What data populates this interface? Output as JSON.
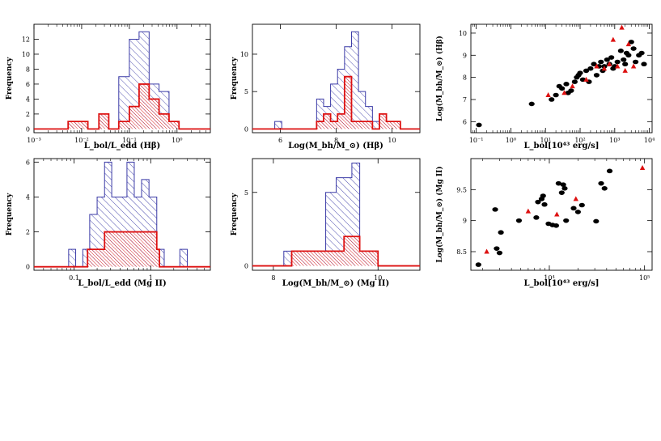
{
  "chart_data": [
    {
      "type": "histogram",
      "id": "hist-lbol-ledd-hb",
      "title": "",
      "xlabel": "L_bol/L_edd (Hβ)",
      "ylabel": "Frequency",
      "x_scale": "log",
      "xlim": [
        0.001,
        5
      ],
      "ylim": [
        -0.5,
        14
      ],
      "x_ticks": [
        {
          "value": 0.001,
          "label": "10⁻³"
        },
        {
          "value": 0.01,
          "label": "10⁻²"
        },
        {
          "value": 0.1,
          "label": "10⁻¹"
        },
        {
          "value": 1,
          "label": "10⁰"
        }
      ],
      "y_ticks": [
        0,
        2,
        4,
        6,
        8,
        10,
        12
      ],
      "series": [
        {
          "color": "#3a3aa6",
          "fill": "hatch-blue",
          "bin_edges": [
            0.0052,
            0.0085,
            0.0135,
            0.023,
            0.037,
            0.06,
            0.1,
            0.16,
            0.26,
            0.42,
            0.68,
            1.1
          ],
          "counts": [
            1,
            1,
            0,
            2,
            0,
            7,
            12,
            13,
            6,
            5,
            1
          ]
        },
        {
          "color": "#dd1111",
          "fill": "hatch-red",
          "bin_edges": [
            0.0052,
            0.0085,
            0.0135,
            0.023,
            0.037,
            0.06,
            0.1,
            0.16,
            0.26,
            0.42,
            0.68,
            1.1
          ],
          "counts": [
            1,
            1,
            0,
            2,
            0,
            1,
            3,
            6,
            4,
            2,
            1
          ]
        }
      ]
    },
    {
      "type": "histogram",
      "id": "hist-mbh-hb",
      "title": "",
      "xlabel": "Log(M_bh/M_⊙) (Hβ)",
      "ylabel": "Frequency",
      "x_scale": "linear",
      "xlim": [
        5,
        11
      ],
      "ylim": [
        -0.5,
        14
      ],
      "x_ticks": [
        {
          "value": 6,
          "label": "6"
        },
        {
          "value": 8,
          "label": "8"
        },
        {
          "value": 10,
          "label": "10"
        }
      ],
      "y_ticks": [
        0,
        5,
        10
      ],
      "series": [
        {
          "color": "#3a3aa6",
          "fill": "hatch-blue",
          "bin_edges": [
            5.8,
            6.05,
            6.3,
            6.55,
            6.8,
            7.05,
            7.3,
            7.55,
            7.8,
            8.05,
            8.3,
            8.55,
            8.8,
            9.05,
            9.3,
            9.55,
            9.8,
            10.05,
            10.3
          ],
          "counts": [
            1,
            0,
            0,
            0,
            0,
            0,
            4,
            3,
            6,
            8,
            11,
            13,
            5,
            3,
            1,
            2,
            1,
            1
          ]
        },
        {
          "color": "#dd1111",
          "fill": "hatch-red",
          "bin_edges": [
            6.8,
            7.05,
            7.3,
            7.55,
            7.8,
            8.05,
            8.3,
            8.55,
            8.8,
            9.05,
            9.3,
            9.55,
            9.8,
            10.05,
            10.3
          ],
          "counts": [
            0,
            0,
            1,
            2,
            1,
            2,
            7,
            1,
            1,
            1,
            0,
            2,
            1,
            1
          ]
        }
      ]
    },
    {
      "type": "scatter",
      "id": "scatter-hb",
      "title": "",
      "xlabel": "L_bol[10⁴³ erg/s]",
      "ylabel": "Log(M_bh/M_⊙) (Hβ)",
      "x_scale": "log",
      "xlim": [
        0.07,
        12000
      ],
      "ylim": [
        5.5,
        10.4
      ],
      "x_ticks": [
        {
          "value": 0.1,
          "label": "10⁻¹"
        },
        {
          "value": 1,
          "label": "10⁰"
        },
        {
          "value": 10,
          "label": "10¹"
        },
        {
          "value": 100,
          "label": "10²"
        },
        {
          "value": 1000,
          "label": "10³"
        },
        {
          "value": 10000,
          "label": "10⁴"
        }
      ],
      "y_ticks": [
        6,
        7,
        8,
        9,
        10
      ],
      "series": [
        {
          "marker": "circle",
          "color": "#000000",
          "points": [
            [
              0.12,
              5.85
            ],
            [
              4,
              6.8
            ],
            [
              15,
              7.0
            ],
            [
              20,
              7.2
            ],
            [
              30,
              7.5
            ],
            [
              40,
              7.7
            ],
            [
              55,
              7.4
            ],
            [
              70,
              7.8
            ],
            [
              80,
              8.0
            ],
            [
              100,
              8.2
            ],
            [
              120,
              7.9
            ],
            [
              150,
              8.3
            ],
            [
              200,
              8.4
            ],
            [
              250,
              8.6
            ],
            [
              300,
              8.1
            ],
            [
              350,
              8.5
            ],
            [
              400,
              8.7
            ],
            [
              500,
              8.5
            ],
            [
              600,
              8.8
            ],
            [
              700,
              8.6
            ],
            [
              800,
              8.9
            ],
            [
              1000,
              8.5
            ],
            [
              1200,
              8.7
            ],
            [
              1500,
              9.2
            ],
            [
              1800,
              8.8
            ],
            [
              2000,
              8.6
            ],
            [
              2500,
              9.0
            ],
            [
              3000,
              9.6
            ],
            [
              3500,
              9.3
            ],
            [
              4000,
              8.7
            ],
            [
              5000,
              9.0
            ],
            [
              6000,
              9.1
            ],
            [
              7000,
              8.6
            ],
            [
              25,
              7.6
            ],
            [
              45,
              7.3
            ],
            [
              90,
              8.1
            ],
            [
              180,
              7.8
            ],
            [
              450,
              8.3
            ],
            [
              900,
              8.4
            ],
            [
              2200,
              9.1
            ]
          ]
        },
        {
          "marker": "triangle",
          "color": "#dd1111",
          "points": [
            [
              12,
              7.2
            ],
            [
              35,
              7.3
            ],
            [
              150,
              7.9
            ],
            [
              300,
              8.5
            ],
            [
              500,
              8.4
            ],
            [
              700,
              8.6
            ],
            [
              900,
              9.7
            ],
            [
              1200,
              8.5
            ],
            [
              1600,
              10.25
            ],
            [
              2000,
              8.3
            ],
            [
              2500,
              9.5
            ],
            [
              3500,
              8.5
            ],
            [
              60,
              7.6
            ]
          ]
        }
      ]
    },
    {
      "type": "histogram",
      "id": "hist-lbol-ledd-mg",
      "title": "",
      "xlabel": "L_bol/L_edd (Mg II)",
      "ylabel": "Frequency",
      "x_scale": "log",
      "xlim": [
        0.03,
        6
      ],
      "ylim": [
        -0.2,
        6.2
      ],
      "x_ticks": [
        {
          "value": 0.1,
          "label": "0.1"
        },
        {
          "value": 1,
          "label": "1"
        }
      ],
      "y_ticks": [
        0,
        2,
        4,
        6
      ],
      "series": [
        {
          "color": "#3a3aa6",
          "fill": "hatch-blue",
          "bin_edges": [
            0.085,
            0.105,
            0.13,
            0.16,
            0.2,
            0.25,
            0.31,
            0.39,
            0.49,
            0.61,
            0.76,
            0.95,
            1.2,
            1.5,
            1.9,
            2.4,
            3.0
          ],
          "counts": [
            1,
            0,
            1,
            3,
            4,
            6,
            4,
            4,
            6,
            4,
            5,
            4,
            1,
            0,
            0,
            1
          ]
        },
        {
          "color": "#dd1111",
          "fill": "hatch-red",
          "bin_edges": [
            0.15,
            0.2,
            0.25,
            0.31,
            0.39,
            0.49,
            0.61,
            0.76,
            0.95,
            1.2,
            1.3
          ],
          "counts": [
            1,
            1,
            2,
            2,
            2,
            2,
            2,
            2,
            2,
            1
          ]
        }
      ]
    },
    {
      "type": "histogram",
      "id": "hist-mbh-mg",
      "title": "",
      "xlabel": "Log(M_bh/M_⊙) (Mg II)",
      "ylabel": "Frequency",
      "x_scale": "linear",
      "xlim": [
        7.6,
        10.8
      ],
      "ylim": [
        -0.3,
        7.3
      ],
      "x_ticks": [
        {
          "value": 8,
          "label": "8"
        },
        {
          "value": 10,
          "label": "10"
        }
      ],
      "y_ticks": [
        0,
        5
      ],
      "series": [
        {
          "color": "#3a3aa6",
          "fill": "hatch-blue",
          "bin_edges": [
            8.2,
            8.4,
            8.6,
            8.8,
            9.0,
            9.2,
            9.35,
            9.5,
            9.65,
            9.8,
            10.0
          ],
          "counts": [
            1,
            1,
            1,
            1,
            5,
            6,
            6,
            7,
            1,
            1
          ]
        },
        {
          "color": "#dd1111",
          "fill": "hatch-red",
          "bin_edges": [
            8.35,
            8.6,
            8.8,
            9.0,
            9.2,
            9.35,
            9.5,
            9.65,
            9.8,
            10.0
          ],
          "counts": [
            1,
            1,
            1,
            1,
            1,
            2,
            2,
            1,
            1
          ]
        }
      ]
    },
    {
      "type": "scatter",
      "id": "scatter-mg",
      "title": "",
      "xlabel": "L_bol[10⁴³ erg/s]",
      "ylabel": "Log(M_bh/M_⊙) (Mg II)",
      "x_scale": "log",
      "xlim": [
        1500,
        120000
      ],
      "ylim": [
        8.2,
        10.0
      ],
      "x_ticks": [
        {
          "value": 10000,
          "label": "10⁴"
        },
        {
          "value": 100000,
          "label": "10⁵"
        }
      ],
      "y_ticks": [
        {
          "value": 8.5,
          "label": "8.5"
        },
        {
          "value": 9,
          "label": "9"
        },
        {
          "value": 9.5,
          "label": "9.5"
        }
      ],
      "series": [
        {
          "marker": "circle",
          "color": "#000000",
          "points": [
            [
              1800,
              8.29
            ],
            [
              2700,
              9.18
            ],
            [
              2800,
              8.55
            ],
            [
              3000,
              8.48
            ],
            [
              3100,
              8.81
            ],
            [
              4800,
              9.0
            ],
            [
              7300,
              9.05
            ],
            [
              7600,
              9.3
            ],
            [
              8300,
              9.35
            ],
            [
              8600,
              9.4
            ],
            [
              8900,
              9.26
            ],
            [
              9800,
              8.95
            ],
            [
              10800,
              8.93
            ],
            [
              11800,
              8.92
            ],
            [
              12500,
              9.6
            ],
            [
              13500,
              9.45
            ],
            [
              14000,
              9.58
            ],
            [
              14500,
              9.52
            ],
            [
              15000,
              9.0
            ],
            [
              18000,
              9.2
            ],
            [
              20000,
              9.14
            ],
            [
              22000,
              9.25
            ],
            [
              31000,
              8.99
            ],
            [
              35000,
              9.6
            ],
            [
              38000,
              9.52
            ],
            [
              43000,
              9.8
            ]
          ]
        },
        {
          "marker": "triangle",
          "color": "#dd1111",
          "points": [
            [
              2200,
              8.5
            ],
            [
              6000,
              9.15
            ],
            [
              12000,
              9.1
            ],
            [
              19000,
              9.35
            ],
            [
              95000,
              9.85
            ]
          ]
        }
      ]
    }
  ]
}
